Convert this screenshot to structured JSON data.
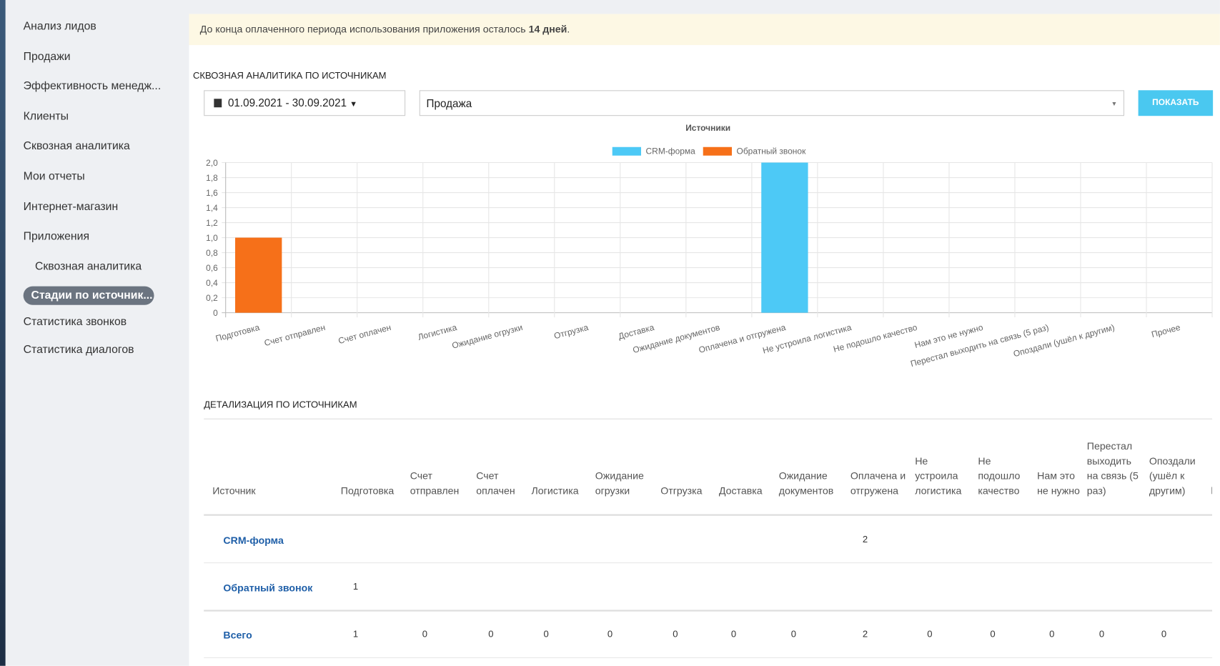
{
  "sidebar": {
    "items": [
      "Анализ лидов",
      "Продажи",
      "Эффективность менедж...",
      "Клиенты",
      "Сквозная аналитика",
      "Мои отчеты",
      "Интернет-магазин",
      "Приложения"
    ],
    "subitems": [
      "Сквозная аналитика",
      "Стадии по источник..."
    ],
    "after": [
      "Статистика звонков",
      "Статистика диалогов"
    ]
  },
  "banner": {
    "text": "До конца оплаченного периода использования приложения осталось",
    "emphasis": "14 дней",
    "end": "."
  },
  "section_title": "СКВОЗНАЯ АНАЛИТИКА ПО ИСТОЧНИКАМ",
  "filters": {
    "date_range": "01.09.2021 - 30.09.2021",
    "select": "Продажа",
    "button": "ПОКАЗАТЬ"
  },
  "chart_data": {
    "type": "stacked_bar",
    "title": "Источники",
    "categories": [
      "Подготовка",
      "Счет отправлен",
      "Счет оплачен",
      "Логистика",
      "Ожидание огрузки",
      "Отгрузка",
      "Доставка",
      "Ожидание документов",
      "Оплачена и отгружена",
      "Не устроила логистика",
      "Не подошло качество",
      "Нам это не нужно",
      "Перестал выходить на связь (5 раз)",
      "Опоздали (ушёл к другим)",
      "Прочее"
    ],
    "series": [
      {
        "name": "CRM-форма",
        "color": "#4dc9f6",
        "values": [
          0,
          0,
          0,
          0,
          0,
          0,
          0,
          0,
          2,
          0,
          0,
          0,
          0,
          0,
          0
        ]
      },
      {
        "name": "Обратный звонок",
        "color": "#f67019",
        "values": [
          1,
          0,
          0,
          0,
          0,
          0,
          0,
          0,
          0,
          0,
          0,
          0,
          0,
          0,
          0
        ]
      }
    ],
    "ylim": [
      0,
      2
    ],
    "yticks": [
      0,
      {
        "value": 0.2,
        "label": "0,2"
      },
      {
        "value": 0.4,
        "label": "0,4"
      },
      {
        "value": 0.6,
        "label": "0,6"
      },
      {
        "value": 0.8,
        "label": "0,8"
      },
      {
        "value": 1,
        "label": "1,0"
      },
      {
        "value": 1.2,
        "label": "1,2"
      },
      {
        "value": 1.4,
        "label": "1,4"
      },
      {
        "value": 1.6,
        "label": "1,6"
      },
      {
        "value": 1.8,
        "label": "1,8"
      },
      {
        "value": 2,
        "label": "2,0"
      }
    ],
    "grid": true,
    "legend": "top"
  },
  "detail_title": "ДЕТАЛИЗАЦИЯ ПО ИСТОЧНИКАМ",
  "table": {
    "columns": [
      "Источник",
      "Подготовка",
      "Счет отправлен",
      "Счет оплачен",
      "Логистика",
      "Ожидание огрузки",
      "Отгрузка",
      "Доставка",
      "Ожидание документов",
      "Оплачена и отгружена",
      "Не устроила логистика",
      "Не подошло качество",
      "Нам это не нужно",
      "Перестал выходить на связь (5 раз)",
      "Опоздали (ушёл к другим)"
    ],
    "rows": [
      {
        "name": "CRM-форма",
        "cells": [
          null,
          null,
          null,
          null,
          null,
          null,
          null,
          null,
          2,
          null,
          null,
          null,
          null,
          null
        ]
      },
      {
        "name": "Обратный звонок",
        "cells": [
          1,
          null,
          null,
          null,
          null,
          null,
          null,
          null,
          null,
          null,
          null,
          null,
          null,
          null
        ]
      },
      {
        "name": "Всего",
        "cells": [
          1,
          0,
          0,
          0,
          0,
          0,
          0,
          0,
          2,
          0,
          0,
          0,
          0,
          0
        ]
      }
    ]
  }
}
